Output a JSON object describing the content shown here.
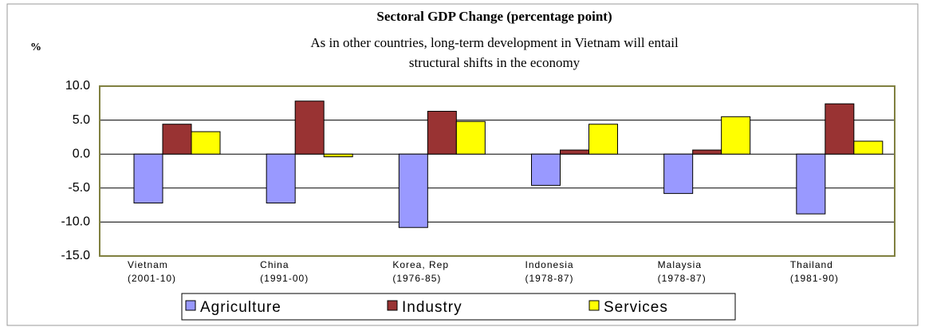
{
  "chart_data": {
    "type": "bar",
    "title": "Sectoral GDP Change (percentage point)",
    "subtitle": [
      "As in other countries, long-term development in Vietnam will entail",
      "structural shifts in the economy"
    ],
    "y_label": "%",
    "categories": [
      [
        "Vietnam",
        "(2001-10)"
      ],
      [
        "China",
        "(1991-00)"
      ],
      [
        "Korea, Rep",
        "(1976-85)"
      ],
      [
        "Indonesia",
        "(1978-87)"
      ],
      [
        "Malaysia",
        "(1978-87)"
      ],
      [
        "Thailand",
        "(1981-90)"
      ]
    ],
    "series": [
      {
        "name": "Agriculture",
        "color": "#9999ff",
        "values": [
          -7.2,
          -7.2,
          -10.8,
          -4.6,
          -5.8,
          -8.8
        ]
      },
      {
        "name": "Industry",
        "color": "#993333",
        "values": [
          4.4,
          7.8,
          6.3,
          0.6,
          0.6,
          7.4
        ]
      },
      {
        "name": "Services",
        "color": "#ffff00",
        "values": [
          3.3,
          -0.4,
          4.8,
          4.4,
          5.5,
          1.9
        ]
      }
    ],
    "ylim": [
      -15,
      10
    ],
    "yticks": [
      {
        "value": 10,
        "label": "10.0"
      },
      {
        "value": 5,
        "label": "5.0"
      },
      {
        "value": 0,
        "label": "0.0"
      },
      {
        "value": -5,
        "label": "-5.0"
      },
      {
        "value": -10,
        "label": "-10.0"
      },
      {
        "value": -15,
        "label": "-15.0"
      }
    ],
    "grid": true
  }
}
